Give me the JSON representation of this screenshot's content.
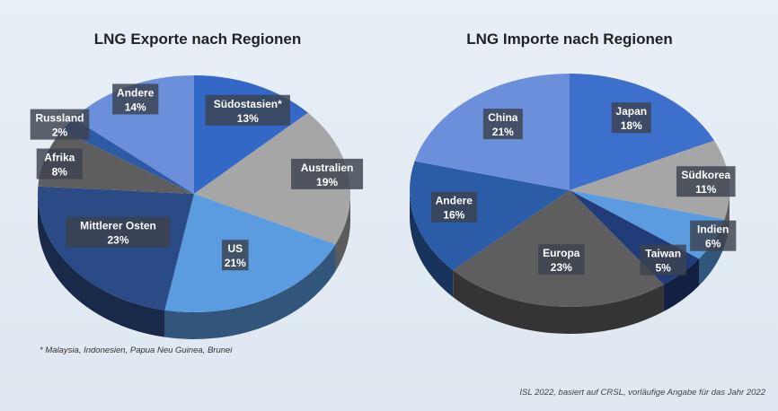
{
  "charts": [
    {
      "title": "LNG Exporte nach Regionen"
    },
    {
      "title": "LNG Importe nach Regionen"
    }
  ],
  "footnote": "* Malaysia, Indonesien, Papua Neu Guinea, Brunei",
  "source": "ISL 2022, basiert auf CRSL, vorläufige Angabe für das Jahr 2022",
  "colors": {
    "dark_navy": "#1f3a6e",
    "mid_blue": "#3468c7",
    "light_blue": "#5b9ce0",
    "grey": "#a4a4a4",
    "dark_grey": "#5a5a5a",
    "periwinkle": "#6b8fdb",
    "steel_blue": "#2b5ca8"
  },
  "chart_data": [
    {
      "type": "pie",
      "title": "LNG Exporte nach Regionen",
      "slices": [
        {
          "label": "Südostasien*",
          "value": 13,
          "pct": "13%",
          "color": "#3468c7"
        },
        {
          "label": "Australien",
          "value": 19,
          "pct": "19%",
          "color": "#a6a6a6"
        },
        {
          "label": "US",
          "value": 21,
          "pct": "21%",
          "color": "#5b9ce0"
        },
        {
          "label": "Mittlerer Osten",
          "value": 23,
          "pct": "23%",
          "color": "#2b4b86"
        },
        {
          "label": "Afrika",
          "value": 8,
          "pct": "8%",
          "color": "#5e5e5e"
        },
        {
          "label": "Russland",
          "value": 2,
          "pct": "2%",
          "color": "#2e5aa5"
        },
        {
          "label": "Andere",
          "value": 14,
          "pct": "14%",
          "color": "#6b8fdb"
        }
      ]
    },
    {
      "type": "pie",
      "title": "LNG Importe nach Regionen",
      "slices": [
        {
          "label": "Japan",
          "value": 18,
          "pct": "18%",
          "color": "#3d6fcc"
        },
        {
          "label": "Südkorea",
          "value": 11,
          "pct": "11%",
          "color": "#a6a6a6"
        },
        {
          "label": "Indien",
          "value": 6,
          "pct": "6%",
          "color": "#5b9ce0"
        },
        {
          "label": "Taiwan",
          "value": 5,
          "pct": "5%",
          "color": "#213c78"
        },
        {
          "label": "Europa",
          "value": 23,
          "pct": "23%",
          "color": "#5e5e5e"
        },
        {
          "label": "Andere",
          "value": 16,
          "pct": "16%",
          "color": "#2b5ca8"
        },
        {
          "label": "China",
          "value": 21,
          "pct": "21%",
          "color": "#6b8fdb"
        }
      ]
    }
  ]
}
